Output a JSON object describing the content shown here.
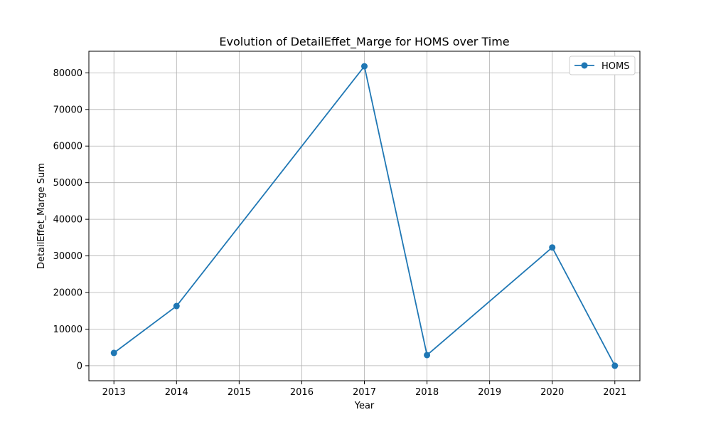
{
  "chart_data": {
    "type": "line",
    "title": "Evolution of DetailEffet_Marge for HOMS over Time",
    "xlabel": "Year",
    "ylabel": "DetailEffet_Marge Sum",
    "x_ticks": [
      2013,
      2014,
      2015,
      2016,
      2017,
      2018,
      2019,
      2020,
      2021
    ],
    "y_ticks": [
      0,
      10000,
      20000,
      30000,
      40000,
      50000,
      60000,
      70000,
      80000
    ],
    "xlim": [
      2012.6,
      2021.4
    ],
    "ylim": [
      -4100,
      85900
    ],
    "grid": true,
    "legend_position": "top-right",
    "colors": {
      "series": "#1f77b4",
      "grid": "#b0b0b0"
    },
    "series": [
      {
        "name": "HOMS",
        "x": [
          2013,
          2014,
          2017,
          2018,
          2020,
          2021
        ],
        "values": [
          3500,
          16300,
          81800,
          2900,
          32300,
          0
        ]
      }
    ]
  }
}
